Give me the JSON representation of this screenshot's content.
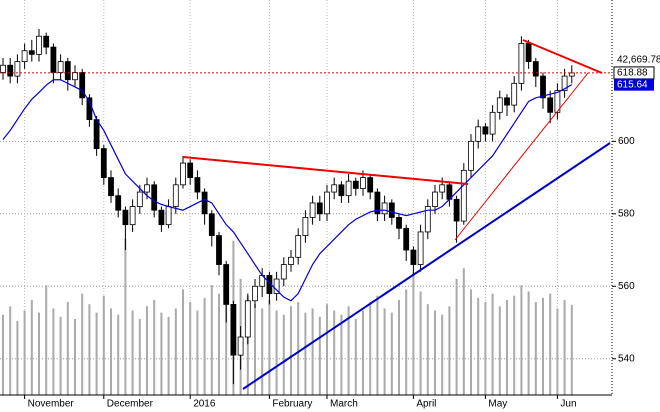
{
  "chart_data": {
    "type": "candlestick",
    "categories": [
      null,
      null,
      null,
      "November",
      null,
      null,
      null,
      null,
      null,
      null,
      null,
      null,
      null,
      null,
      "December",
      null,
      null,
      null,
      null,
      null,
      null,
      null,
      null,
      null,
      null,
      null,
      "2016",
      null,
      null,
      null,
      null,
      null,
      null,
      null,
      null,
      null,
      null,
      "February",
      null,
      null,
      null,
      null,
      null,
      null,
      null,
      "March",
      null,
      null,
      null,
      null,
      null,
      null,
      null,
      null,
      null,
      null,
      null,
      "April",
      null,
      null,
      null,
      null,
      null,
      null,
      null,
      null,
      null,
      "May",
      null,
      null,
      null,
      null,
      null,
      null,
      null,
      null,
      null,
      "Jun",
      null,
      null
    ],
    "open": [
      619,
      621,
      618,
      622,
      625,
      624,
      629,
      626,
      619,
      622,
      617,
      619,
      612,
      606,
      598,
      590,
      585,
      581,
      577,
      582,
      586,
      588,
      581,
      577,
      582,
      588,
      594,
      590,
      586,
      580,
      574,
      566,
      555,
      541,
      546,
      556,
      560,
      563,
      558,
      562,
      566,
      568,
      574,
      579,
      583,
      580,
      586,
      588,
      585,
      589,
      587,
      590,
      586,
      580,
      583,
      579,
      576,
      570,
      566,
      575,
      582,
      586,
      588,
      584,
      578,
      592,
      600,
      604,
      602,
      608,
      612,
      610,
      616,
      627,
      622,
      618,
      612,
      608,
      614,
      618
    ],
    "high": [
      623,
      623,
      624,
      627,
      628,
      631,
      630,
      627,
      624,
      623,
      621,
      620,
      613,
      607,
      599,
      592,
      587,
      582,
      584,
      588,
      590,
      589,
      582,
      584,
      590,
      596,
      595,
      592,
      587,
      581,
      575,
      567,
      556,
      549,
      558,
      562,
      565,
      564,
      564,
      568,
      570,
      576,
      581,
      585,
      585,
      588,
      590,
      589,
      591,
      590,
      592,
      591,
      587,
      585,
      584,
      580,
      577,
      571,
      577,
      584,
      588,
      590,
      589,
      585,
      594,
      602,
      606,
      605,
      610,
      614,
      613,
      618,
      629,
      628,
      623,
      619,
      614,
      616,
      620,
      621
    ],
    "low": [
      617,
      616,
      616,
      620,
      622,
      622,
      624,
      616,
      617,
      614,
      615,
      610,
      604,
      596,
      588,
      583,
      579,
      570,
      575,
      580,
      584,
      579,
      575,
      576,
      580,
      587,
      588,
      584,
      577,
      571,
      563,
      550,
      533,
      537,
      544,
      554,
      557,
      555,
      556,
      560,
      564,
      566,
      572,
      577,
      578,
      578,
      584,
      583,
      583,
      585,
      585,
      584,
      578,
      578,
      577,
      573,
      567,
      563,
      564,
      573,
      580,
      584,
      582,
      572,
      577,
      590,
      598,
      600,
      600,
      606,
      607,
      608,
      614,
      620,
      615,
      609,
      605,
      606,
      612,
      616
    ],
    "close": [
      621,
      618,
      622,
      625,
      624,
      629,
      626,
      619,
      622,
      617,
      619,
      612,
      606,
      598,
      590,
      585,
      581,
      577,
      582,
      586,
      588,
      581,
      577,
      582,
      588,
      594,
      590,
      586,
      580,
      574,
      566,
      555,
      541,
      546,
      556,
      560,
      563,
      558,
      562,
      566,
      568,
      574,
      579,
      583,
      580,
      586,
      588,
      585,
      589,
      587,
      590,
      586,
      580,
      583,
      579,
      576,
      570,
      566,
      575,
      582,
      586,
      588,
      584,
      578,
      592,
      600,
      604,
      602,
      608,
      612,
      610,
      616,
      627,
      622,
      618,
      612,
      608,
      614,
      618,
      618.88
    ],
    "ma": {
      "color": "#0000dd",
      "values": [
        600.5,
        603,
        606,
        609,
        611.6,
        613.5,
        615.5,
        617,
        617,
        616,
        615,
        614,
        611,
        606,
        603,
        599,
        595,
        591,
        589,
        587,
        585,
        583.5,
        582.6,
        582,
        581.5,
        581,
        582,
        583,
        584,
        583,
        580,
        577,
        575,
        572,
        569,
        566,
        563,
        561,
        559,
        557,
        556,
        558,
        562,
        566,
        569,
        571,
        573,
        575,
        577,
        578.5,
        579.5,
        580.5,
        581,
        581,
        580.5,
        580,
        579.5,
        580,
        580.5,
        581,
        581,
        582,
        584,
        586,
        588,
        590,
        592,
        594,
        596,
        599,
        602,
        605,
        608,
        611,
        612,
        612.5,
        613,
        613.5,
        614.5,
        615.64
      ]
    },
    "volume": {
      "color": "#aaaaaa",
      "axis": "y2",
      "values": [
        38000,
        42000,
        35000,
        40000,
        45000,
        39000,
        52000,
        41000,
        37000,
        44000,
        36000,
        48000,
        43000,
        39000,
        47000,
        41000,
        38000,
        74000,
        40000,
        36000,
        42000,
        45000,
        39000,
        37000,
        41000,
        50000,
        44000,
        40000,
        46000,
        52000,
        48000,
        60000,
        73000,
        55000,
        47000,
        43000,
        41000,
        45000,
        40000,
        38000,
        42000,
        44000,
        39000,
        41000,
        37000,
        43000,
        40000,
        38000,
        42000,
        36000,
        40000,
        44000,
        47000,
        41000,
        39000,
        45000,
        50000,
        58000,
        49000,
        43000,
        40000,
        38000,
        42000,
        55000,
        60000,
        50000,
        46000,
        44000,
        48000,
        42000,
        45000,
        47000,
        52000,
        49000,
        44000,
        46000,
        48000,
        41000,
        45000,
        42669.78
      ]
    },
    "last_volume_label": "42,669.78",
    "up_color": "#ffffff",
    "down_color": "#000000",
    "last_line_color": "#dd0000",
    "ylim": [
      530,
      639
    ],
    "yticks": [
      540,
      560,
      580,
      600
    ],
    "y2lim": [
      0,
      187000
    ],
    "grid": true
  }
}
